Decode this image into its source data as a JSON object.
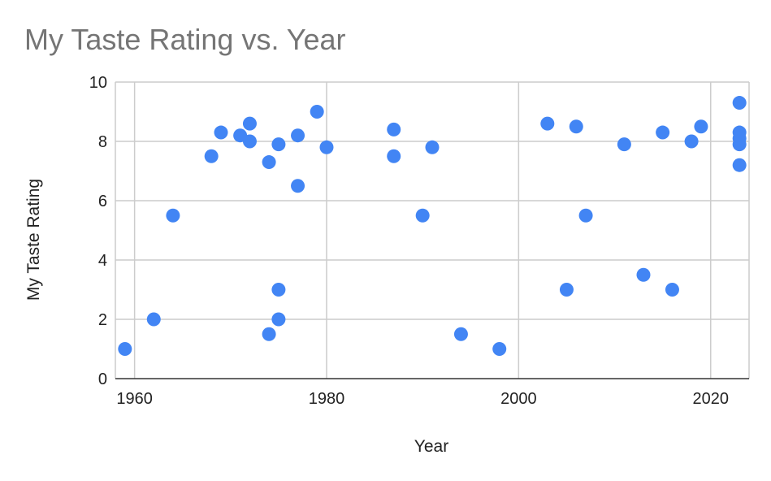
{
  "chart_data": {
    "type": "scatter",
    "title": "My Taste Rating vs. Year",
    "xlabel": "Year",
    "ylabel": "My Taste Rating",
    "xlim": [
      1958,
      2024
    ],
    "ylim": [
      0,
      10
    ],
    "x_ticks": [
      1960,
      1980,
      2000,
      2020
    ],
    "y_ticks": [
      0,
      2,
      4,
      6,
      8,
      10
    ],
    "grid": true,
    "legend": "none",
    "point_color": "#4285f4",
    "series": [
      {
        "points": [
          {
            "x": 1959,
            "y": 1.0
          },
          {
            "x": 1962,
            "y": 2.0
          },
          {
            "x": 1964,
            "y": 5.5
          },
          {
            "x": 1968,
            "y": 7.5
          },
          {
            "x": 1969,
            "y": 8.3
          },
          {
            "x": 1971,
            "y": 8.2
          },
          {
            "x": 1972,
            "y": 8.6
          },
          {
            "x": 1972,
            "y": 8.0
          },
          {
            "x": 1974,
            "y": 7.3
          },
          {
            "x": 1974,
            "y": 1.5
          },
          {
            "x": 1975,
            "y": 7.9
          },
          {
            "x": 1975,
            "y": 3.0
          },
          {
            "x": 1975,
            "y": 2.0
          },
          {
            "x": 1977,
            "y": 8.2
          },
          {
            "x": 1977,
            "y": 6.5
          },
          {
            "x": 1979,
            "y": 9.0
          },
          {
            "x": 1980,
            "y": 7.8
          },
          {
            "x": 1987,
            "y": 8.4
          },
          {
            "x": 1987,
            "y": 7.5
          },
          {
            "x": 1990,
            "y": 5.5
          },
          {
            "x": 1991,
            "y": 7.8
          },
          {
            "x": 1994,
            "y": 1.5
          },
          {
            "x": 1998,
            "y": 1.0
          },
          {
            "x": 2003,
            "y": 8.6
          },
          {
            "x": 2005,
            "y": 3.0
          },
          {
            "x": 2006,
            "y": 8.5
          },
          {
            "x": 2007,
            "y": 5.5
          },
          {
            "x": 2011,
            "y": 7.9
          },
          {
            "x": 2013,
            "y": 3.5
          },
          {
            "x": 2015,
            "y": 8.3
          },
          {
            "x": 2016,
            "y": 3.0
          },
          {
            "x": 2018,
            "y": 8.0
          },
          {
            "x": 2019,
            "y": 8.5
          },
          {
            "x": 2023,
            "y": 9.3
          },
          {
            "x": 2023,
            "y": 8.3
          },
          {
            "x": 2023,
            "y": 8.1
          },
          {
            "x": 2023,
            "y": 7.9
          },
          {
            "x": 2023,
            "y": 7.2
          }
        ]
      }
    ]
  }
}
